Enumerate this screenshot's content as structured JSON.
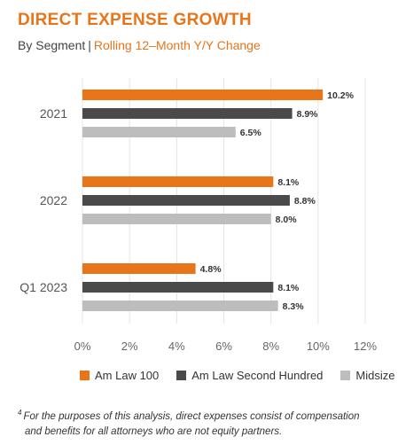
{
  "header": {
    "title": "DIRECT EXPENSE GROWTH",
    "subtitle_left": "By Segment",
    "subtitle_sep": "|",
    "subtitle_right": "Rolling 12–Month Y/Y Change"
  },
  "colors": {
    "accent": "#e8751a",
    "am_law_100": "#e8751a",
    "am_law_second_hundred": "#4a4a4a",
    "midsize": "#bdbdbd"
  },
  "chart_data": {
    "type": "bar",
    "orientation": "horizontal",
    "title": "DIRECT EXPENSE GROWTH",
    "categories": [
      "2021",
      "2022",
      "Q1 2023"
    ],
    "series": [
      {
        "name": "Am Law 100",
        "values": [
          10.2,
          8.1,
          4.8
        ],
        "labels": [
          "10.2%",
          "8.1%",
          "4.8%"
        ]
      },
      {
        "name": "Am Law Second Hundred",
        "values": [
          8.9,
          8.8,
          8.1
        ],
        "labels": [
          "8.9%",
          "8.8%",
          "8.1%"
        ]
      },
      {
        "name": "Midsize",
        "values": [
          6.5,
          8.0,
          8.3
        ],
        "labels": [
          "6.5%",
          "8.0%",
          "8.3%"
        ]
      }
    ],
    "xlim": [
      0,
      12
    ],
    "xticks": [
      "0%",
      "2%",
      "4%",
      "6%",
      "8%",
      "10%",
      "12%"
    ],
    "grid": true,
    "legend_position": "bottom"
  },
  "footnote": {
    "marker": "4",
    "line1": "For the purposes of this analysis, direct expenses consist of compensation",
    "line2": "and benefits for all attorneys who are not equity partners."
  }
}
